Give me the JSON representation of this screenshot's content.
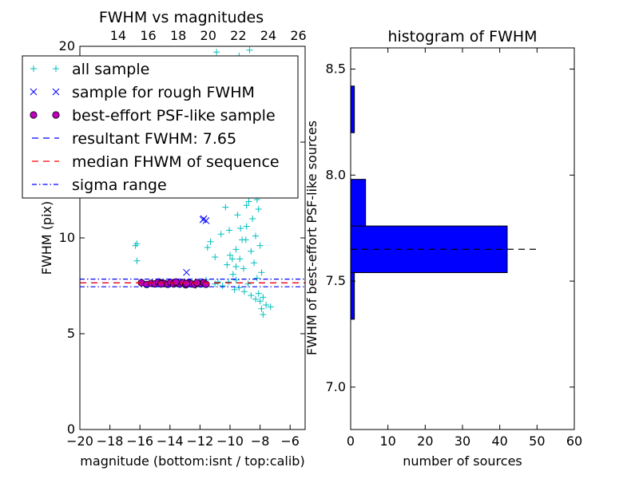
{
  "chart_data": [
    {
      "type": "scatter",
      "title": "FWHM vs magnitudes",
      "xlabel": "magnitude (bottom:isnt / top:calib)",
      "ylabel": "FWHM (pix)",
      "xlim": [
        -20,
        -5
      ],
      "ylim": [
        0,
        20
      ],
      "x_ticks": [
        "−20",
        "−18",
        "−16",
        "−14",
        "−12",
        "−10",
        "−8",
        "−6"
      ],
      "x_tick_values": [
        -20,
        -18,
        -16,
        -14,
        -12,
        -10,
        -8,
        -6
      ],
      "top_x_ticks": [
        "14",
        "16",
        "18",
        "20",
        "22",
        "24",
        "26"
      ],
      "top_x_tick_values": [
        -17.45,
        -15.45,
        -13.45,
        -11.45,
        -9.45,
        -7.45,
        -5.45
      ],
      "y_ticks": [
        "0",
        "5",
        "10",
        "15",
        "20"
      ],
      "y_tick_values": [
        0,
        5,
        10,
        15,
        20
      ],
      "legend_position": "top-left",
      "legend": [
        {
          "label": "all sample",
          "marker": "plus",
          "color": "#00bfbf"
        },
        {
          "label": "sample for rough FWHM",
          "marker": "x",
          "color": "#0000ff"
        },
        {
          "label": "best-effort PSF-like sample",
          "marker": "circle",
          "color": "#bf00bf"
        },
        {
          "label": "resultant FWHM: 7.65",
          "marker": "dashed",
          "color": "#0000ff"
        },
        {
          "label": "median FHWM of sequence",
          "marker": "dashed",
          "color": "#ff0000"
        },
        {
          "label": "sigma range",
          "marker": "dashdot",
          "color": "#0000ff"
        }
      ],
      "series": [
        {
          "name": "all sample",
          "color": "#00bfbf",
          "marker": "plus",
          "points": [
            [
              -16.2,
              9.7
            ],
            [
              -16.3,
              9.6
            ],
            [
              -16.2,
              8.8
            ],
            [
              -12.8,
              7.7
            ],
            [
              -12.3,
              7.5
            ],
            [
              -11.6,
              7.8
            ],
            [
              -11.0,
              7.6
            ],
            [
              -10.8,
              7.7
            ],
            [
              -10.5,
              7.5
            ],
            [
              -11.5,
              9.5
            ],
            [
              -11.3,
              9.8
            ],
            [
              -11.0,
              9.0
            ],
            [
              -10.6,
              10.2
            ],
            [
              -10.2,
              8.6
            ],
            [
              -10.0,
              9.1
            ],
            [
              -9.8,
              8.1
            ],
            [
              -9.6,
              9.4
            ],
            [
              -9.5,
              11.2
            ],
            [
              -9.3,
              10.5
            ],
            [
              -9.2,
              12.4
            ],
            [
              -9.1,
              8.4
            ],
            [
              -9.0,
              13.1
            ],
            [
              -8.95,
              9.9
            ],
            [
              -8.9,
              11.7
            ],
            [
              -8.8,
              14.2
            ],
            [
              -8.7,
              12.9
            ],
            [
              -8.6,
              15.5
            ],
            [
              -8.6,
              9.3
            ],
            [
              -8.5,
              16.3
            ],
            [
              -8.5,
              11.0
            ],
            [
              -8.4,
              18.4
            ],
            [
              -8.4,
              8.7
            ],
            [
              -8.3,
              13.6
            ],
            [
              -8.3,
              10.1
            ],
            [
              -8.2,
              12.0
            ],
            [
              -8.2,
              7.9
            ],
            [
              -8.1,
              11.5
            ],
            [
              -8.1,
              7.1
            ],
            [
              -8.0,
              9.6
            ],
            [
              -8.0,
              6.7
            ],
            [
              -7.9,
              8.2
            ],
            [
              -7.9,
              6.3
            ],
            [
              -7.8,
              6.9
            ],
            [
              -7.8,
              6.0
            ],
            [
              -7.6,
              6.5
            ],
            [
              -7.3,
              6.4
            ],
            [
              -9.4,
              7.4
            ],
            [
              -9.7,
              7.3
            ],
            [
              -10.1,
              7.7
            ],
            [
              -10.9,
              19.7
            ],
            [
              -8.7,
              19.8
            ],
            [
              -9.9,
              19.2
            ],
            [
              -10.3,
              18.0
            ],
            [
              -10.6,
              17.4
            ],
            [
              -9.4,
              19.5
            ],
            [
              -8.8,
              7.6
            ],
            [
              -9.05,
              7.2
            ],
            [
              -8.3,
              6.8
            ],
            [
              -8.6,
              7.0
            ],
            [
              -9.6,
              7.8
            ],
            [
              -8.55,
              17.5
            ],
            [
              -8.35,
              16.8
            ],
            [
              -8.15,
              15.9
            ],
            [
              -8.05,
              14.3
            ],
            [
              -8.45,
              13.3
            ],
            [
              -8.75,
              11.9
            ],
            [
              -8.9,
              10.6
            ],
            [
              -9.2,
              9.9
            ],
            [
              -9.35,
              8.9
            ],
            [
              -9.6,
              8.5
            ],
            [
              -9.85,
              8.9
            ],
            [
              -10.05,
              10.4
            ],
            [
              -10.3,
              11.6
            ]
          ]
        },
        {
          "name": "sample for rough FWHM",
          "color": "#0000ff",
          "marker": "x",
          "points": [
            [
              -12.9,
              8.2
            ],
            [
              -11.8,
              10.95
            ],
            [
              -11.6,
              10.9
            ],
            [
              -11.75,
              11.0
            ],
            [
              -8.6,
              15.2
            ]
          ]
        },
        {
          "name": "best-effort PSF-like sample",
          "color": "#bf00bf",
          "marker": "circle",
          "points": [
            [
              -15.9,
              7.66
            ],
            [
              -15.55,
              7.57
            ],
            [
              -15.25,
              7.63
            ],
            [
              -15.0,
              7.6
            ],
            [
              -14.75,
              7.7
            ],
            [
              -14.55,
              7.65
            ],
            [
              -14.35,
              7.62
            ],
            [
              -14.15,
              7.58
            ],
            [
              -13.95,
              7.68
            ],
            [
              -13.75,
              7.6
            ],
            [
              -13.55,
              7.64
            ],
            [
              -13.35,
              7.59
            ],
            [
              -13.15,
              7.67
            ],
            [
              -12.95,
              7.55
            ],
            [
              -12.75,
              7.66
            ],
            [
              -12.55,
              7.6
            ],
            [
              -12.35,
              7.57
            ],
            [
              -12.15,
              7.63
            ],
            [
              -11.95,
              7.6
            ],
            [
              -11.75,
              7.66
            ],
            [
              -11.6,
              7.58
            ],
            [
              -14.6,
              7.6
            ],
            [
              -13.6,
              7.7
            ],
            [
              -12.9,
              7.62
            ],
            [
              -12.2,
              7.66
            ]
          ]
        }
      ],
      "lines": [
        {
          "name": "resultant FWHM: 7.65",
          "y": 7.65,
          "style": "dashed",
          "color": "#0000ff"
        },
        {
          "name": "median FHWM of sequence",
          "y": 7.65,
          "style": "dashed",
          "color": "#ff0000"
        },
        {
          "name": "sigma range",
          "y": 7.45,
          "style": "dashdot",
          "color": "#0000ff"
        },
        {
          "name": "sigma range",
          "y": 7.85,
          "style": "dashdot",
          "color": "#0000ff"
        }
      ]
    },
    {
      "type": "bar",
      "orientation": "horizontal",
      "title": "histogram of FWHM",
      "xlabel": "number of sources",
      "ylabel": "FWHM of best-effort PSF-like sources",
      "xlim": [
        0,
        60
      ],
      "ylim": [
        6.8,
        8.6
      ],
      "x_ticks": [
        "0",
        "10",
        "20",
        "30",
        "40",
        "50",
        "60"
      ],
      "x_tick_values": [
        0,
        10,
        20,
        30,
        40,
        50,
        60
      ],
      "y_ticks": [
        "7.0",
        "7.5",
        "8.0",
        "8.5"
      ],
      "y_tick_values": [
        7.0,
        7.5,
        8.0,
        8.5
      ],
      "bar_color": "#0000ff",
      "bins": [
        {
          "from": 7.32,
          "to": 7.54,
          "count": 1
        },
        {
          "from": 7.54,
          "to": 7.76,
          "count": 42
        },
        {
          "from": 7.76,
          "to": 7.98,
          "count": 4
        },
        {
          "from": 8.2,
          "to": 8.42,
          "count": 1
        }
      ],
      "reference_line": {
        "y": 7.65,
        "x_to": 51,
        "style": "dashed",
        "color": "#000000"
      }
    }
  ]
}
